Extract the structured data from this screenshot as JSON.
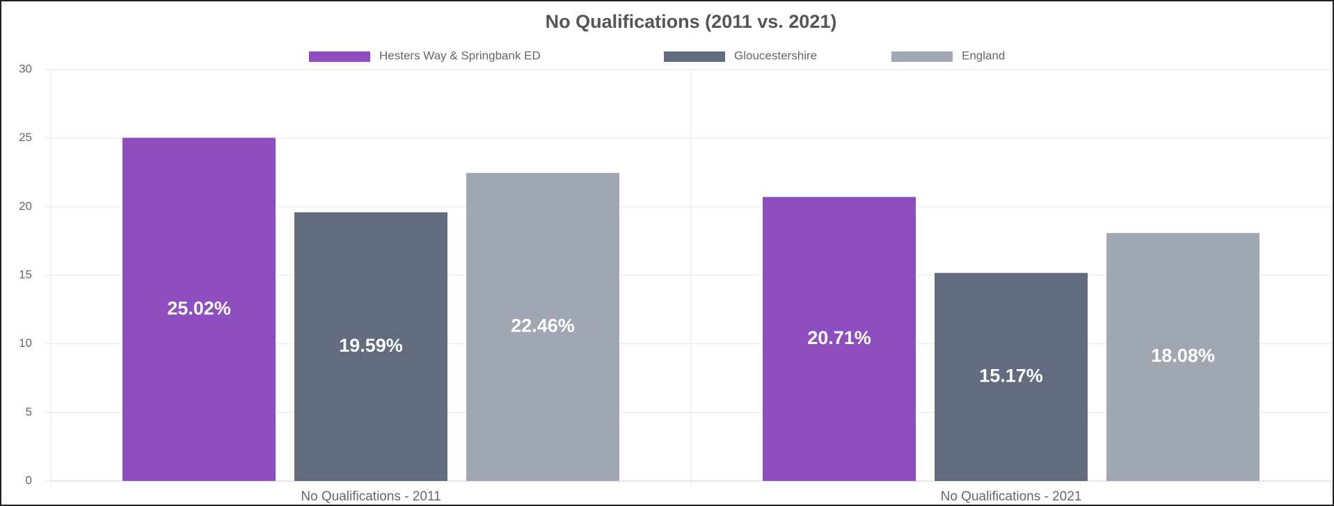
{
  "chart_data": {
    "type": "bar",
    "title": "No Qualifications (2011 vs. 2021)",
    "categories": [
      "No Qualifications - 2011",
      "No Qualifications - 2021"
    ],
    "series": [
      {
        "name": "Hesters Way & Springbank ED",
        "color": "#8e4ec0",
        "values": [
          25.02,
          20.71
        ],
        "value_labels": [
          "25.02%",
          "20.71%"
        ]
      },
      {
        "name": "Gloucestershire",
        "color": "#626c7e",
        "values": [
          19.59,
          15.17
        ],
        "value_labels": [
          "19.59%",
          "15.17%"
        ]
      },
      {
        "name": "England",
        "color": "#a0a6b2",
        "values": [
          22.46,
          18.08
        ],
        "value_labels": [
          "22.46%",
          "18.08%"
        ]
      }
    ],
    "ylim": [
      0,
      30
    ],
    "yticks": [
      0,
      5,
      10,
      15,
      20,
      25,
      30
    ],
    "grid": true,
    "legend": "top"
  }
}
